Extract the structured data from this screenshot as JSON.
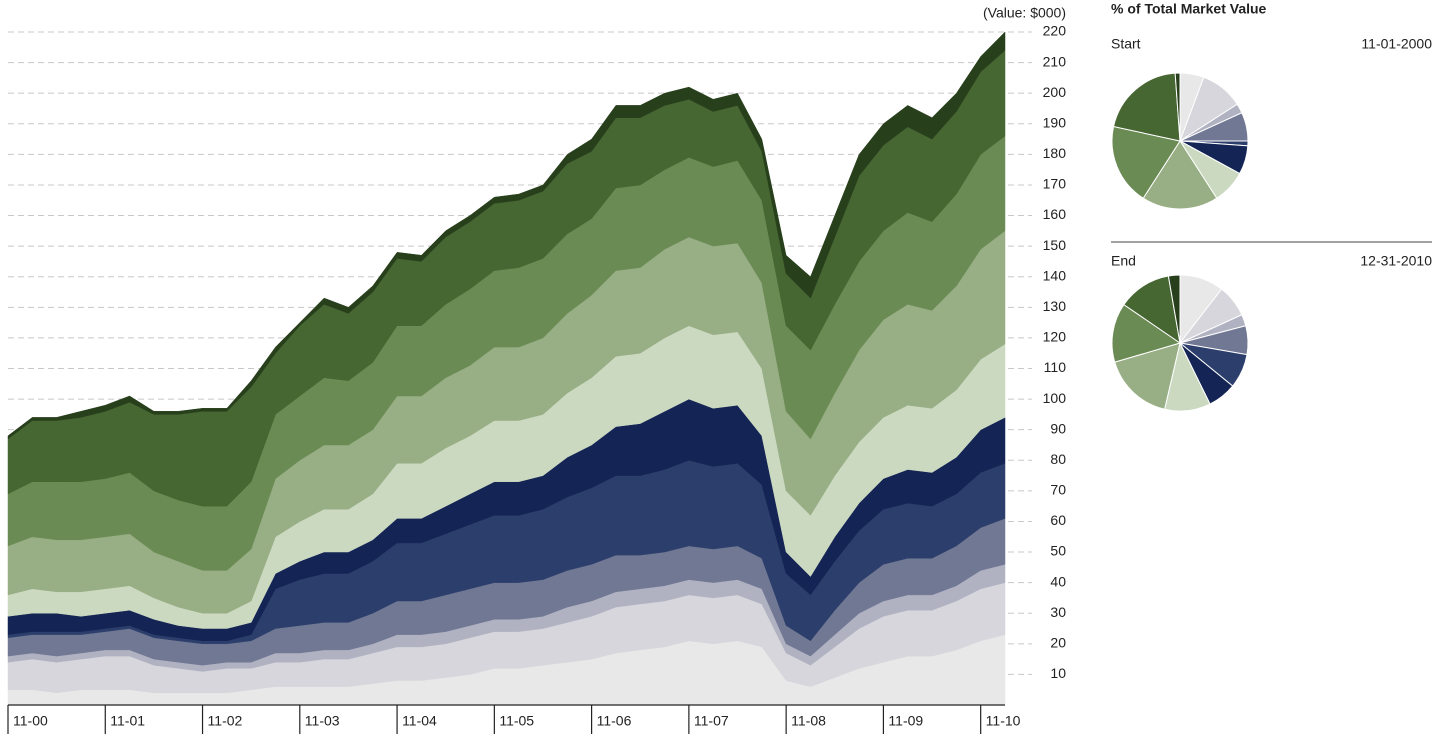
{
  "chart_data": [
    {
      "type": "stacked_area",
      "y_label": "(Value: $000)",
      "categories": [
        "11-00",
        null,
        null,
        null,
        "11-01",
        null,
        null,
        null,
        "11-02",
        null,
        null,
        null,
        "11-03",
        null,
        null,
        null,
        "11-04",
        null,
        null,
        null,
        "11-05",
        null,
        null,
        null,
        "11-06",
        null,
        null,
        null,
        "11-07",
        null,
        null,
        null,
        "11-08",
        null,
        null,
        null,
        "11-09",
        null,
        null,
        null,
        "11-10",
        null
      ],
      "ylim": [
        0,
        220
      ],
      "yticks": [
        10,
        20,
        30,
        40,
        50,
        60,
        70,
        80,
        90,
        100,
        110,
        120,
        130,
        140,
        150,
        160,
        170,
        180,
        190,
        200,
        210,
        220
      ],
      "grid": true,
      "series": [
        {
          "color": "#e8e8e9",
          "values": [
            5,
            5,
            4,
            5,
            5,
            5,
            4,
            4,
            4,
            4,
            5,
            6,
            6,
            6,
            6,
            7,
            8,
            8,
            9,
            10,
            12,
            12,
            13,
            14,
            15,
            17,
            18,
            19,
            21,
            20,
            21,
            19,
            8,
            6,
            9,
            12,
            14,
            16,
            16,
            18,
            21,
            23
          ]
        },
        {
          "color": "#d6d6dc",
          "values": [
            9,
            10,
            10,
            10,
            11,
            11,
            9,
            8,
            7,
            8,
            7,
            8,
            8,
            9,
            9,
            10,
            11,
            11,
            11,
            12,
            12,
            12,
            12,
            13,
            14,
            15,
            15,
            15,
            15,
            15,
            15,
            14,
            9,
            7,
            10,
            13,
            15,
            15,
            15,
            16,
            17,
            17
          ]
        },
        {
          "color": "#b0b2c2",
          "values": [
            2,
            2,
            2,
            2,
            2,
            2,
            2,
            2,
            2,
            2,
            2,
            3,
            3,
            3,
            3,
            3,
            4,
            4,
            4,
            4,
            4,
            4,
            4,
            5,
            5,
            5,
            5,
            5,
            5,
            5,
            5,
            5,
            3,
            3,
            4,
            5,
            5,
            5,
            5,
            5,
            6,
            6
          ]
        },
        {
          "color": "#717894",
          "values": [
            6,
            6,
            7,
            6,
            6,
            7,
            7,
            7,
            7,
            6,
            7,
            8,
            9,
            9,
            9,
            10,
            11,
            11,
            12,
            12,
            12,
            12,
            12,
            12,
            12,
            12,
            11,
            11,
            11,
            11,
            11,
            10,
            6,
            5,
            8,
            10,
            12,
            12,
            12,
            13,
            14,
            15
          ]
        },
        {
          "color": "#2c3e6b",
          "values": [
            1,
            1,
            1,
            1,
            1,
            1,
            1,
            1,
            1,
            1,
            2,
            13,
            15,
            16,
            16,
            17,
            19,
            19,
            20,
            21,
            22,
            22,
            23,
            24,
            25,
            26,
            26,
            27,
            28,
            27,
            27,
            24,
            17,
            15,
            16,
            17,
            18,
            18,
            17,
            17,
            18,
            18
          ]
        },
        {
          "color": "#142454",
          "values": [
            6,
            6,
            6,
            5,
            5,
            5,
            5,
            4,
            4,
            4,
            4,
            5,
            6,
            7,
            7,
            7,
            8,
            8,
            9,
            10,
            11,
            11,
            11,
            13,
            14,
            16,
            17,
            19,
            20,
            19,
            19,
            16,
            7,
            6,
            8,
            9,
            10,
            11,
            11,
            12,
            14,
            15
          ]
        },
        {
          "color": "#cbd9c0",
          "values": [
            7,
            8,
            7,
            8,
            8,
            8,
            7,
            6,
            5,
            5,
            7,
            12,
            13,
            14,
            14,
            15,
            18,
            18,
            19,
            19,
            20,
            20,
            20,
            21,
            22,
            23,
            23,
            24,
            24,
            24,
            24,
            22,
            20,
            20,
            20,
            20,
            20,
            21,
            21,
            22,
            23,
            24
          ]
        },
        {
          "color": "#98ae85",
          "values": [
            16,
            17,
            17,
            17,
            17,
            17,
            15,
            15,
            14,
            14,
            17,
            19,
            20,
            21,
            21,
            21,
            22,
            22,
            23,
            23,
            24,
            24,
            25,
            26,
            27,
            28,
            28,
            29,
            29,
            29,
            29,
            28,
            26,
            25,
            27,
            30,
            32,
            33,
            32,
            34,
            36,
            37
          ]
        },
        {
          "color": "#6b8b54",
          "values": [
            17,
            18,
            19,
            19,
            19,
            20,
            20,
            20,
            21,
            21,
            22,
            21,
            21,
            22,
            21,
            22,
            23,
            23,
            24,
            25,
            25,
            26,
            26,
            26,
            25,
            27,
            27,
            26,
            26,
            26,
            27,
            27,
            28,
            29,
            29,
            29,
            29,
            30,
            29,
            30,
            31,
            31
          ]
        },
        {
          "color": "#466632",
          "values": [
            18,
            20,
            20,
            21,
            22,
            23,
            25,
            28,
            31,
            31,
            31,
            20,
            23,
            24,
            22,
            23,
            22,
            21,
            22,
            22,
            22,
            22,
            22,
            23,
            22,
            23,
            22,
            21,
            19,
            18,
            18,
            16,
            17,
            17,
            22,
            28,
            28,
            28,
            27,
            27,
            27,
            28
          ]
        },
        {
          "color": "#273f1b",
          "values": [
            1,
            1,
            1,
            2,
            2,
            2,
            1,
            1,
            1,
            1,
            2,
            2,
            1,
            2,
            2,
            2,
            2,
            2,
            2,
            2,
            2,
            2,
            2,
            3,
            4,
            4,
            4,
            4,
            4,
            4,
            4,
            4,
            6,
            7,
            7,
            7,
            7,
            7,
            7,
            6,
            5,
            6
          ]
        }
      ]
    },
    {
      "type": "pie",
      "heading": "% of Total Market Value",
      "title": "Start",
      "subtitle": "11-01-2000"
    },
    {
      "type": "pie",
      "title": "End",
      "subtitle": "12-31-2010"
    }
  ]
}
